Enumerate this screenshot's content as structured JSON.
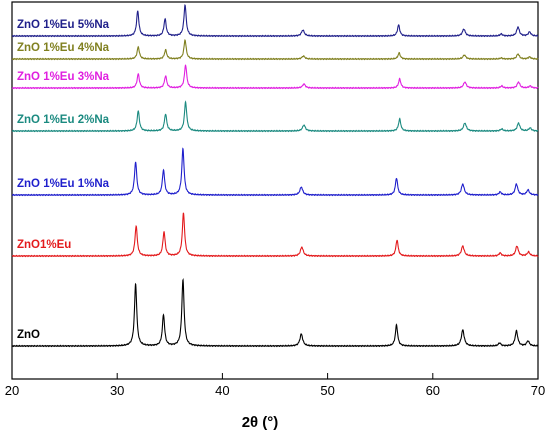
{
  "chart_data": {
    "type": "line",
    "title": "",
    "xlabel": "2θ (°)",
    "ylabel": "",
    "xlim": [
      20,
      70
    ],
    "x_ticks": [
      "20",
      "30",
      "40",
      "50",
      "60",
      "70"
    ],
    "y_ticks_shown": false,
    "grid": false,
    "legend": "inline labels at left of each trace",
    "series": [
      {
        "name": "ZnO",
        "color": "#000000",
        "offset": 0,
        "peaks": [
          [
            31.75,
            62
          ],
          [
            34.4,
            31
          ],
          [
            36.25,
            66
          ],
          [
            47.5,
            12
          ],
          [
            56.55,
            21
          ],
          [
            62.85,
            16
          ],
          [
            66.35,
            3
          ],
          [
            67.95,
            15
          ],
          [
            69.05,
            5
          ]
        ]
      },
      {
        "name": "ZnO1%Eu",
        "color": "#e31a1c",
        "offset": 90,
        "peaks": [
          [
            31.8,
            30
          ],
          [
            34.45,
            24
          ],
          [
            36.3,
            43
          ],
          [
            47.55,
            9
          ],
          [
            56.6,
            16
          ],
          [
            62.85,
            10
          ],
          [
            66.4,
            3
          ],
          [
            68.0,
            10
          ],
          [
            69.1,
            4
          ]
        ]
      },
      {
        "name": "ZnO 1%Eu 1%Na",
        "color": "#1f1fcc",
        "offset": 151,
        "peaks": [
          [
            31.75,
            33
          ],
          [
            34.4,
            25
          ],
          [
            36.25,
            46
          ],
          [
            47.5,
            8
          ],
          [
            56.55,
            17
          ],
          [
            62.85,
            11
          ],
          [
            66.4,
            3
          ],
          [
            67.95,
            11
          ],
          [
            69.05,
            5
          ]
        ]
      },
      {
        "name": "ZnO 1%Eu 2%Na",
        "color": "#1b8a80",
        "offset": 215,
        "peaks": [
          [
            32.0,
            20
          ],
          [
            34.6,
            17
          ],
          [
            36.5,
            29
          ],
          [
            47.75,
            6
          ],
          [
            56.85,
            12
          ],
          [
            63.05,
            8
          ],
          [
            66.55,
            2
          ],
          [
            68.15,
            8
          ],
          [
            69.25,
            3
          ]
        ]
      },
      {
        "name": "ZnO 1%Eu 3%Na",
        "color": "#e020e0",
        "offset": 258,
        "peaks": [
          [
            32.0,
            14
          ],
          [
            34.6,
            12
          ],
          [
            36.5,
            23
          ],
          [
            47.75,
            4
          ],
          [
            56.85,
            9
          ],
          [
            63.05,
            6
          ],
          [
            66.55,
            2
          ],
          [
            68.15,
            6
          ],
          [
            69.25,
            2
          ]
        ]
      },
      {
        "name": "ZnO 1%Eu 4%Na",
        "color": "#808020",
        "offset": 287,
        "peaks": [
          [
            32.0,
            12
          ],
          [
            34.6,
            9
          ],
          [
            36.45,
            19
          ],
          [
            47.7,
            3
          ],
          [
            56.8,
            6
          ],
          [
            63.0,
            4
          ],
          [
            66.5,
            1
          ],
          [
            68.1,
            5
          ],
          [
            69.2,
            2
          ]
        ]
      },
      {
        "name": "ZnO 1%Eu 5%Na",
        "color": "#20208a",
        "offset": 310,
        "peaks": [
          [
            31.95,
            25
          ],
          [
            34.55,
            17
          ],
          [
            36.45,
            31
          ],
          [
            47.65,
            6
          ],
          [
            56.75,
            11
          ],
          [
            62.95,
            7
          ],
          [
            66.5,
            2
          ],
          [
            68.1,
            9
          ],
          [
            69.2,
            4
          ]
        ]
      }
    ]
  }
}
